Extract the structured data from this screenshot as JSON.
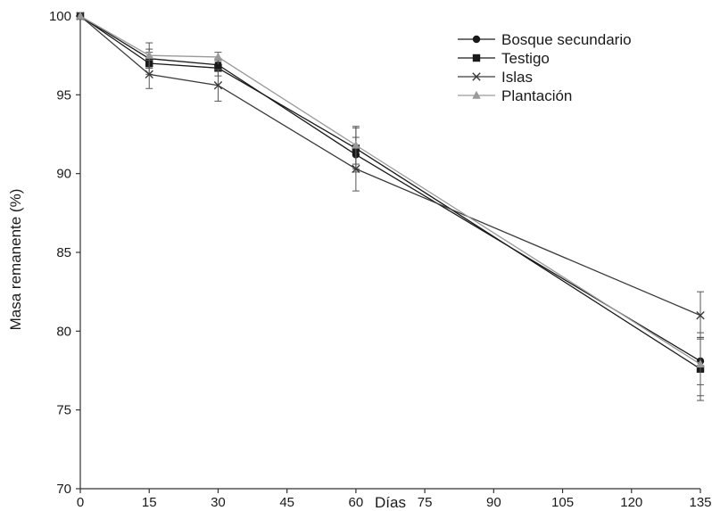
{
  "chart_data": {
    "type": "line",
    "title": "",
    "xlabel": "Días",
    "ylabel": "Masa remanente (%)",
    "xlim": [
      0,
      135
    ],
    "ylim": [
      70,
      100
    ],
    "xticks": [
      0,
      15,
      30,
      45,
      60,
      75,
      90,
      105,
      120,
      135
    ],
    "yticks": [
      70,
      75,
      80,
      85,
      90,
      95,
      100
    ],
    "grid": false,
    "legend_position": "top-right",
    "x": [
      0,
      15,
      30,
      60,
      135
    ],
    "series": [
      {
        "name": "Bosque secundario",
        "marker": "circle",
        "color": "#1a1a1a",
        "values": [
          100,
          97.3,
          96.9,
          91.2,
          78.1
        ],
        "error": [
          0,
          0.6,
          0.4,
          1.1,
          1.5
        ]
      },
      {
        "name": "Testigo",
        "marker": "square",
        "color": "#1a1a1a",
        "values": [
          100,
          97.0,
          96.7,
          91.6,
          77.6
        ],
        "error": [
          0,
          0.7,
          0.5,
          1.3,
          2.0
        ]
      },
      {
        "name": "Islas",
        "marker": "x",
        "color": "#3a3a3a",
        "values": [
          100,
          96.3,
          95.6,
          90.3,
          81.0
        ],
        "error": [
          0,
          0.9,
          1.0,
          1.4,
          1.5
        ]
      },
      {
        "name": "Plantación",
        "marker": "triangle",
        "color": "#9a9a9a",
        "values": [
          100,
          97.5,
          97.4,
          91.8,
          77.9
        ],
        "error": [
          0,
          0.8,
          0.3,
          1.2,
          2.0
        ]
      }
    ]
  }
}
